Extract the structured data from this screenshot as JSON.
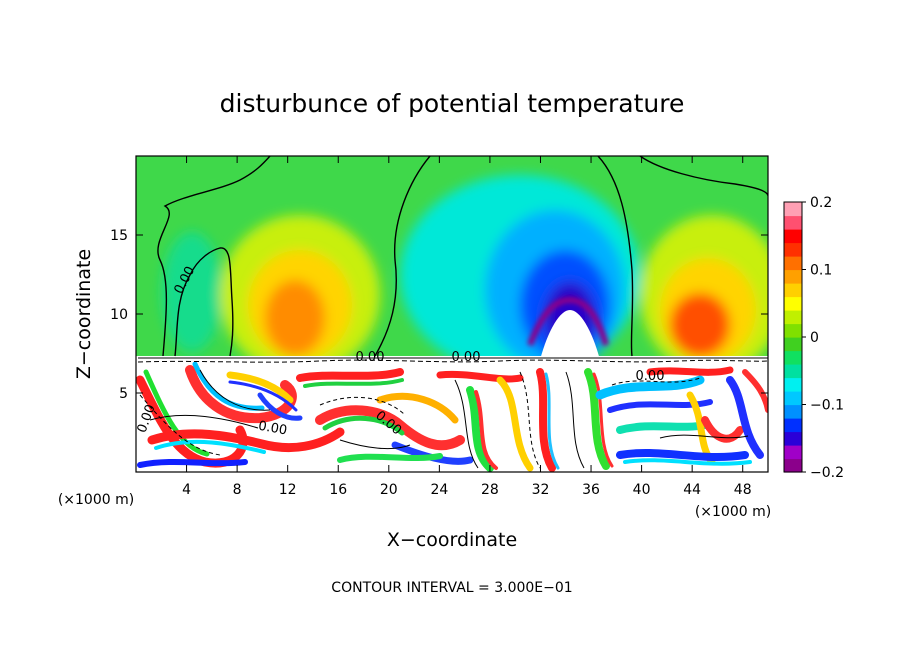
{
  "chart_data": {
    "type": "heatmap",
    "title": "disturbunce of potential temperature",
    "xlabel": "X−coordinate",
    "ylabel": "Z−coordinate",
    "x_unit_label": "(×1000 m)",
    "z_unit_label": "(×1000 m)",
    "xlim": [
      0,
      50
    ],
    "ylim": [
      0,
      20
    ],
    "x_ticks": [
      4,
      8,
      12,
      16,
      20,
      24,
      28,
      32,
      36,
      40,
      44,
      48
    ],
    "x_tick_labels": [
      "4",
      "8",
      "12",
      "16",
      "20",
      "24",
      "28",
      "32",
      "36",
      "40",
      "44",
      "48"
    ],
    "y_ticks": [
      5,
      10,
      15
    ],
    "y_tick_labels": [
      "5",
      "10",
      "15"
    ],
    "colorbar": {
      "min": -0.2,
      "max": 0.2,
      "ticks": [
        0.2,
        0.1,
        0,
        -0.1,
        -0.2
      ],
      "tick_labels": [
        "0.2",
        "0.1",
        "0",
        "−0.1",
        "−0.2"
      ],
      "colors": [
        "#8b008b",
        "#a000c8",
        "#2a00d8",
        "#0030ff",
        "#0090ff",
        "#00c8ff",
        "#00f0f0",
        "#00e0a0",
        "#10e060",
        "#40d020",
        "#80e000",
        "#c0f000",
        "#ffff00",
        "#ffd000",
        "#ffa000",
        "#ff7000",
        "#ff3000",
        "#ff0000",
        "#ff5070",
        "#ffa0b4"
      ]
    },
    "features": [
      {
        "type": "warm_anomaly",
        "x": 12,
        "z": 11,
        "value": 0.11
      },
      {
        "type": "warm_anomaly",
        "x": 45,
        "z": 11,
        "value": 0.12
      },
      {
        "type": "cold_anomaly",
        "x": 34,
        "z": 10,
        "value": -0.2
      },
      {
        "type": "neutral_band",
        "x": 3,
        "z": 13,
        "value": 0.0
      }
    ],
    "boundary_layer_top_z": 7.2,
    "contour_labels": [
      "0.00",
      "0.00",
      "0.00",
      "0.00",
      "0.00",
      "0.00",
      "0.00",
      "0.00"
    ],
    "contour_interval_text": "CONTOUR INTERVAL = 3.000E−01"
  }
}
